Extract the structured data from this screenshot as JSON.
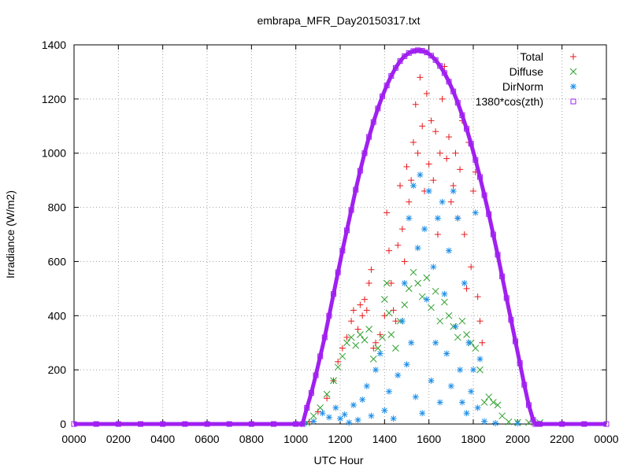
{
  "chart_data": {
    "type": "scatter",
    "title": "embrapa_MFR_Day20150317.txt",
    "xlabel": "UTC Hour",
    "ylabel": "Irradiance (W/m2)",
    "xlim": [
      0,
      24
    ],
    "ylim": [
      0,
      1400
    ],
    "x_tick_values": [
      0,
      2,
      4,
      6,
      8,
      10,
      12,
      14,
      16,
      18,
      20,
      22,
      24
    ],
    "x_tick_labels": [
      "0000",
      "0200",
      "0400",
      "0600",
      "0800",
      "1000",
      "1200",
      "1400",
      "1600",
      "1800",
      "2000",
      "2200",
      "0000"
    ],
    "y_ticks": [
      0,
      200,
      400,
      600,
      800,
      1000,
      1200,
      1400
    ],
    "grid": true,
    "legend_position": "top-right",
    "series": [
      {
        "name": "Total",
        "color": "#e8191c",
        "marker": "plus",
        "points": [
          [
            10.6,
            8
          ],
          [
            11.0,
            45
          ],
          [
            11.4,
            95
          ],
          [
            11.7,
            160
          ],
          [
            11.9,
            230
          ],
          [
            12.1,
            280
          ],
          [
            12.3,
            320
          ],
          [
            12.5,
            380
          ],
          [
            12.6,
            420
          ],
          [
            12.8,
            350
          ],
          [
            12.9,
            440
          ],
          [
            13.0,
            400
          ],
          [
            13.1,
            460
          ],
          [
            13.2,
            420
          ],
          [
            13.3,
            520
          ],
          [
            13.4,
            570
          ],
          [
            13.5,
            280
          ],
          [
            13.6,
            300
          ],
          [
            13.8,
            330
          ],
          [
            14.0,
            400
          ],
          [
            14.1,
            780
          ],
          [
            14.2,
            640
          ],
          [
            14.3,
            520
          ],
          [
            14.4,
            420
          ],
          [
            14.5,
            380
          ],
          [
            14.6,
            660
          ],
          [
            14.7,
            880
          ],
          [
            14.8,
            720
          ],
          [
            14.9,
            600
          ],
          [
            15.0,
            950
          ],
          [
            15.1,
            820
          ],
          [
            15.2,
            900
          ],
          [
            15.3,
            1040
          ],
          [
            15.4,
            1180
          ],
          [
            15.5,
            1000
          ],
          [
            15.6,
            1280
          ],
          [
            15.7,
            1100
          ],
          [
            15.8,
            860
          ],
          [
            15.9,
            1220
          ],
          [
            16.0,
            960
          ],
          [
            16.1,
            1120
          ],
          [
            16.2,
            900
          ],
          [
            16.3,
            1080
          ],
          [
            16.4,
            700
          ],
          [
            16.5,
            1000
          ],
          [
            16.6,
            1200
          ],
          [
            16.7,
            1320
          ],
          [
            16.8,
            980
          ],
          [
            16.9,
            1060
          ],
          [
            17.0,
            820
          ],
          [
            17.1,
            880
          ],
          [
            17.2,
            1000
          ],
          [
            17.3,
            760
          ],
          [
            17.4,
            940
          ],
          [
            17.5,
            1120
          ],
          [
            17.6,
            700
          ],
          [
            17.7,
            500
          ],
          [
            17.8,
            1040
          ],
          [
            17.9,
            580
          ],
          [
            18.0,
            860
          ],
          [
            18.1,
            930
          ],
          [
            18.2,
            470
          ],
          [
            18.3,
            380
          ],
          [
            18.4,
            300
          ]
        ]
      },
      {
        "name": "Diffuse",
        "color": "#2ca02c",
        "marker": "cross",
        "points": [
          [
            10.5,
            5
          ],
          [
            10.8,
            30
          ],
          [
            11.1,
            60
          ],
          [
            11.4,
            110
          ],
          [
            11.7,
            160
          ],
          [
            11.9,
            210
          ],
          [
            12.1,
            250
          ],
          [
            12.3,
            300
          ],
          [
            12.5,
            320
          ],
          [
            12.7,
            290
          ],
          [
            12.9,
            330
          ],
          [
            13.1,
            310
          ],
          [
            13.3,
            350
          ],
          [
            13.5,
            240
          ],
          [
            13.7,
            280
          ],
          [
            13.9,
            320
          ],
          [
            14.0,
            460
          ],
          [
            14.1,
            520
          ],
          [
            14.2,
            410
          ],
          [
            14.3,
            330
          ],
          [
            14.5,
            280
          ],
          [
            14.7,
            380
          ],
          [
            14.9,
            440
          ],
          [
            15.1,
            500
          ],
          [
            15.3,
            560
          ],
          [
            15.5,
            520
          ],
          [
            15.7,
            470
          ],
          [
            15.9,
            540
          ],
          [
            16.1,
            430
          ],
          [
            16.3,
            490
          ],
          [
            16.5,
            380
          ],
          [
            16.7,
            450
          ],
          [
            16.9,
            400
          ],
          [
            17.1,
            360
          ],
          [
            17.3,
            320
          ],
          [
            17.5,
            380
          ],
          [
            17.7,
            330
          ],
          [
            17.9,
            300
          ],
          [
            18.1,
            280
          ],
          [
            18.3,
            200
          ],
          [
            18.5,
            80
          ],
          [
            18.7,
            100
          ],
          [
            18.9,
            80
          ],
          [
            19.1,
            70
          ],
          [
            19.3,
            30
          ],
          [
            19.6,
            8
          ],
          [
            20.0,
            6
          ],
          [
            20.5,
            6
          ],
          [
            21.0,
            5
          ]
        ]
      },
      {
        "name": "DirNorm",
        "color": "#1e8fe8",
        "marker": "star",
        "points": [
          [
            10.4,
            2
          ],
          [
            10.8,
            10
          ],
          [
            11.2,
            40
          ],
          [
            11.5,
            25
          ],
          [
            11.8,
            60
          ],
          [
            12.0,
            20
          ],
          [
            12.2,
            35
          ],
          [
            12.4,
            5
          ],
          [
            12.6,
            70
          ],
          [
            12.8,
            15
          ],
          [
            13.0,
            90
          ],
          [
            13.2,
            140
          ],
          [
            13.4,
            30
          ],
          [
            13.6,
            200
          ],
          [
            13.8,
            260
          ],
          [
            14.0,
            50
          ],
          [
            14.2,
            120
          ],
          [
            14.4,
            20
          ],
          [
            14.6,
            180
          ],
          [
            14.8,
            380
          ],
          [
            14.9,
            520
          ],
          [
            15.0,
            220
          ],
          [
            15.1,
            760
          ],
          [
            15.2,
            300
          ],
          [
            15.3,
            880
          ],
          [
            15.4,
            100
          ],
          [
            15.5,
            650
          ],
          [
            15.6,
            920
          ],
          [
            15.7,
            40
          ],
          [
            15.8,
            720
          ],
          [
            15.9,
            460
          ],
          [
            16.0,
            860
          ],
          [
            16.1,
            160
          ],
          [
            16.2,
            580
          ],
          [
            16.3,
            300
          ],
          [
            16.4,
            760
          ],
          [
            16.5,
            80
          ],
          [
            16.6,
            820
          ],
          [
            16.7,
            480
          ],
          [
            16.8,
            260
          ],
          [
            16.9,
            640
          ],
          [
            17.0,
            140
          ],
          [
            17.1,
            860
          ],
          [
            17.2,
            360
          ],
          [
            17.3,
            760
          ],
          [
            17.4,
            200
          ],
          [
            17.5,
            80
          ],
          [
            17.6,
            520
          ],
          [
            17.7,
            40
          ],
          [
            17.8,
            300
          ],
          [
            17.9,
            120
          ],
          [
            18.0,
            200
          ],
          [
            18.1,
            780
          ],
          [
            18.2,
            60
          ],
          [
            18.3,
            240
          ],
          [
            18.5,
            10
          ],
          [
            19.0,
            3
          ],
          [
            20.0,
            2
          ],
          [
            21.0,
            1
          ]
        ]
      },
      {
        "name": "1380*cos(zth)",
        "color": "#a020f0",
        "marker": "square",
        "points": [
          [
            0.0,
            0
          ],
          [
            1.0,
            0
          ],
          [
            2.0,
            0
          ],
          [
            3.0,
            0
          ],
          [
            4.0,
            0
          ],
          [
            5.0,
            0
          ],
          [
            6.0,
            0
          ],
          [
            7.0,
            0
          ],
          [
            8.0,
            0
          ],
          [
            9.0,
            0
          ],
          [
            10.0,
            0
          ],
          [
            10.3,
            0
          ],
          [
            10.5,
            60
          ],
          [
            10.7,
            115
          ],
          [
            10.9,
            180
          ],
          [
            11.1,
            250
          ],
          [
            11.3,
            320
          ],
          [
            11.5,
            400
          ],
          [
            11.7,
            480
          ],
          [
            11.9,
            560
          ],
          [
            12.1,
            640
          ],
          [
            12.3,
            715
          ],
          [
            12.5,
            790
          ],
          [
            12.7,
            865
          ],
          [
            12.9,
            935
          ],
          [
            13.1,
            1000
          ],
          [
            13.3,
            1060
          ],
          [
            13.5,
            1115
          ],
          [
            13.7,
            1165
          ],
          [
            13.9,
            1210
          ],
          [
            14.1,
            1250
          ],
          [
            14.3,
            1285
          ],
          [
            14.5,
            1315
          ],
          [
            14.7,
            1340
          ],
          [
            14.9,
            1358
          ],
          [
            15.1,
            1370
          ],
          [
            15.3,
            1377
          ],
          [
            15.5,
            1380
          ],
          [
            15.7,
            1378
          ],
          [
            15.9,
            1372
          ],
          [
            16.1,
            1360
          ],
          [
            16.3,
            1344
          ],
          [
            16.5,
            1322
          ],
          [
            16.7,
            1296
          ],
          [
            16.9,
            1264
          ],
          [
            17.1,
            1228
          ],
          [
            17.3,
            1186
          ],
          [
            17.5,
            1140
          ],
          [
            17.7,
            1090
          ],
          [
            17.9,
            1035
          ],
          [
            18.1,
            975
          ],
          [
            18.3,
            912
          ],
          [
            18.5,
            845
          ],
          [
            18.7,
            775
          ],
          [
            18.9,
            700
          ],
          [
            19.1,
            625
          ],
          [
            19.3,
            545
          ],
          [
            19.5,
            465
          ],
          [
            19.7,
            385
          ],
          [
            19.9,
            305
          ],
          [
            20.1,
            225
          ],
          [
            20.3,
            145
          ],
          [
            20.5,
            70
          ],
          [
            20.7,
            15
          ],
          [
            20.8,
            0
          ],
          [
            21.0,
            0
          ],
          [
            22.0,
            0
          ],
          [
            23.0,
            0
          ],
          [
            24.0,
            0
          ]
        ]
      }
    ]
  }
}
